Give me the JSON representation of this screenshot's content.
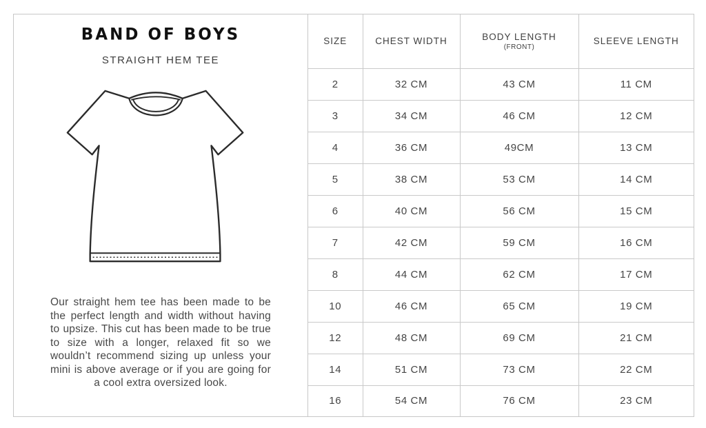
{
  "brand": {
    "logo": "BAND OF BOYS",
    "product": "STRAIGHT HEM TEE"
  },
  "description": "Our straight hem tee has been made to be the perfect length and width without having to upsize. This cut has been made to be true to size with a longer, relaxed fit so we wouldn’t recommend sizing up unless your mini is above average or if you are going for a cool extra oversized look.",
  "size_chart": {
    "columns": [
      "SIZE",
      "CHEST WIDTH",
      "BODY LENGTH",
      "SLEEVE LENGTH"
    ],
    "body_length_note": "(FRONT)",
    "rows": [
      [
        "2",
        "32 CM",
        "43 CM",
        "11 CM"
      ],
      [
        "3",
        "34 CM",
        "46 CM",
        "12 CM"
      ],
      [
        "4",
        "36 CM",
        "49CM",
        "13 CM"
      ],
      [
        "5",
        "38 CM",
        "53 CM",
        "14 CM"
      ],
      [
        "6",
        "40 CM",
        "56 CM",
        "15 CM"
      ],
      [
        "7",
        "42 CM",
        "59 CM",
        "16 CM"
      ],
      [
        "8",
        "44 CM",
        "62 CM",
        "17 CM"
      ],
      [
        "10",
        "46 CM",
        "65 CM",
        "19 CM"
      ],
      [
        "12",
        "48 CM",
        "69 CM",
        "21 CM"
      ],
      [
        "14",
        "51 CM",
        "73 CM",
        "22 CM"
      ],
      [
        "16",
        "54 CM",
        "76 CM",
        "23 CM"
      ]
    ]
  },
  "colors": {
    "border": "#c7c7c7",
    "text": "#474747",
    "logo": "#101010"
  }
}
